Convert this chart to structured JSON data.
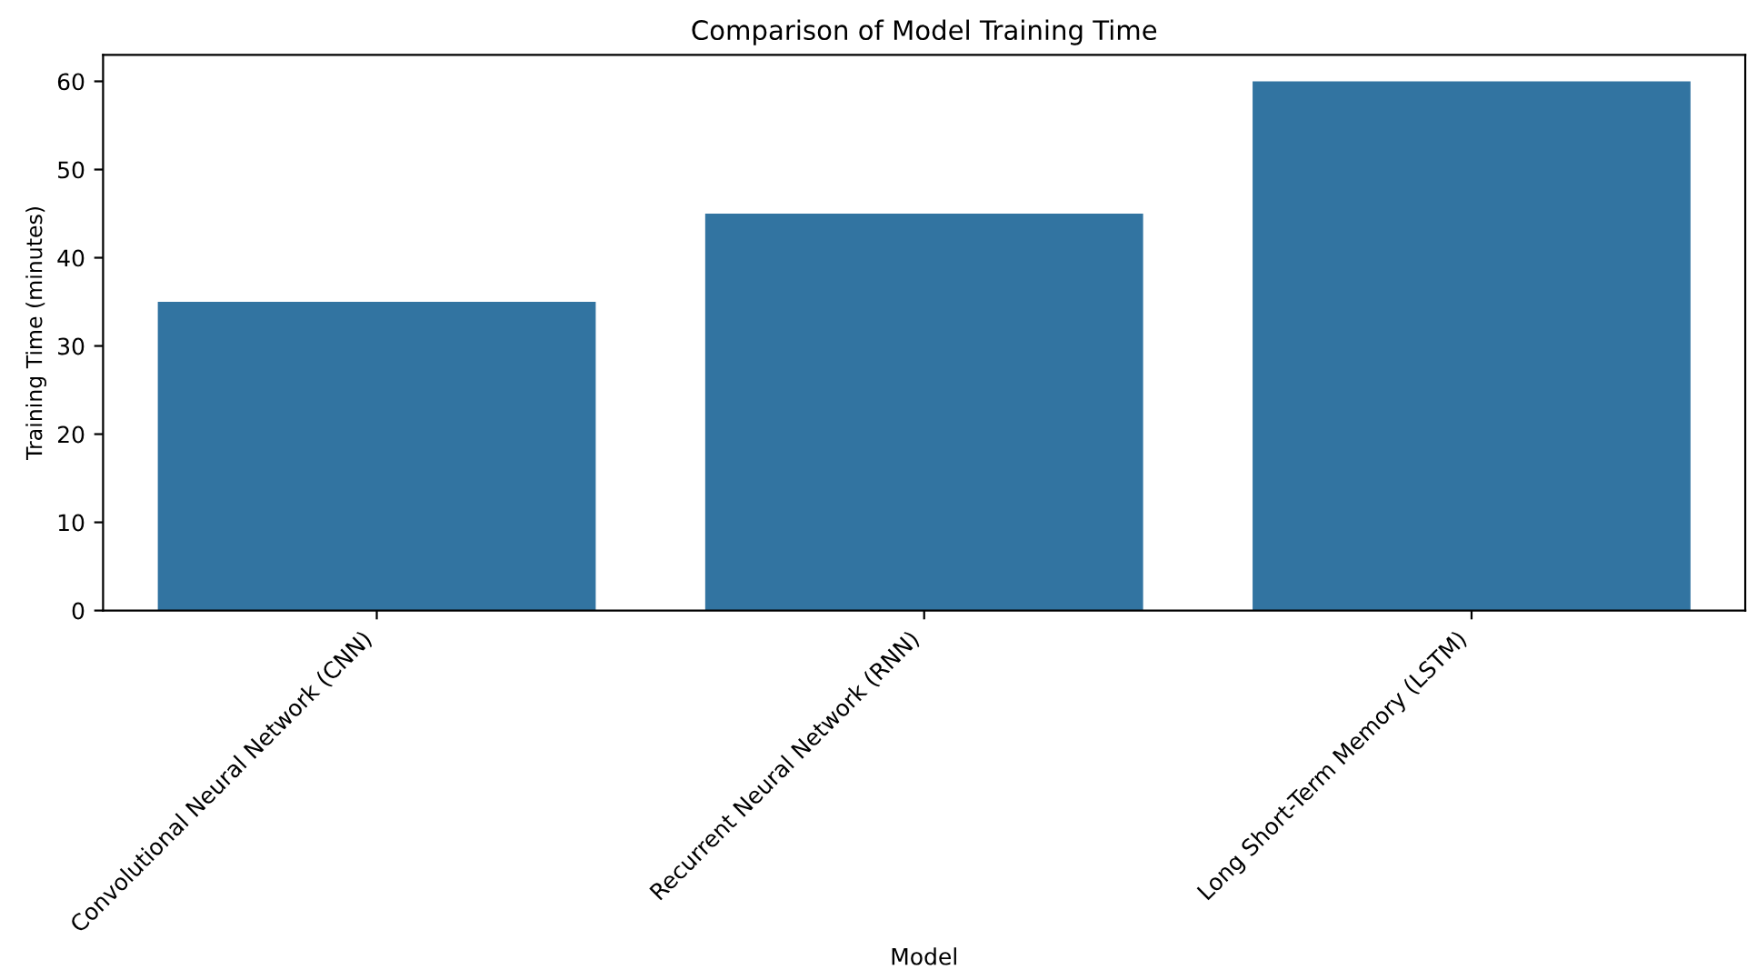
{
  "chart_data": {
    "type": "bar",
    "title": "Comparison of Model Training Time",
    "xlabel": "Model",
    "ylabel": "Training Time (minutes)",
    "categories": [
      "Convolutional Neural Network (CNN)",
      "Recurrent Neural Network (RNN)",
      "Long Short-Term Memory (LSTM)"
    ],
    "values": [
      35,
      45,
      60
    ],
    "color": "#3274a1",
    "ylim": [
      0,
      63
    ],
    "yticks": [
      0,
      10,
      20,
      30,
      40,
      50,
      60
    ],
    "grid": false
  }
}
